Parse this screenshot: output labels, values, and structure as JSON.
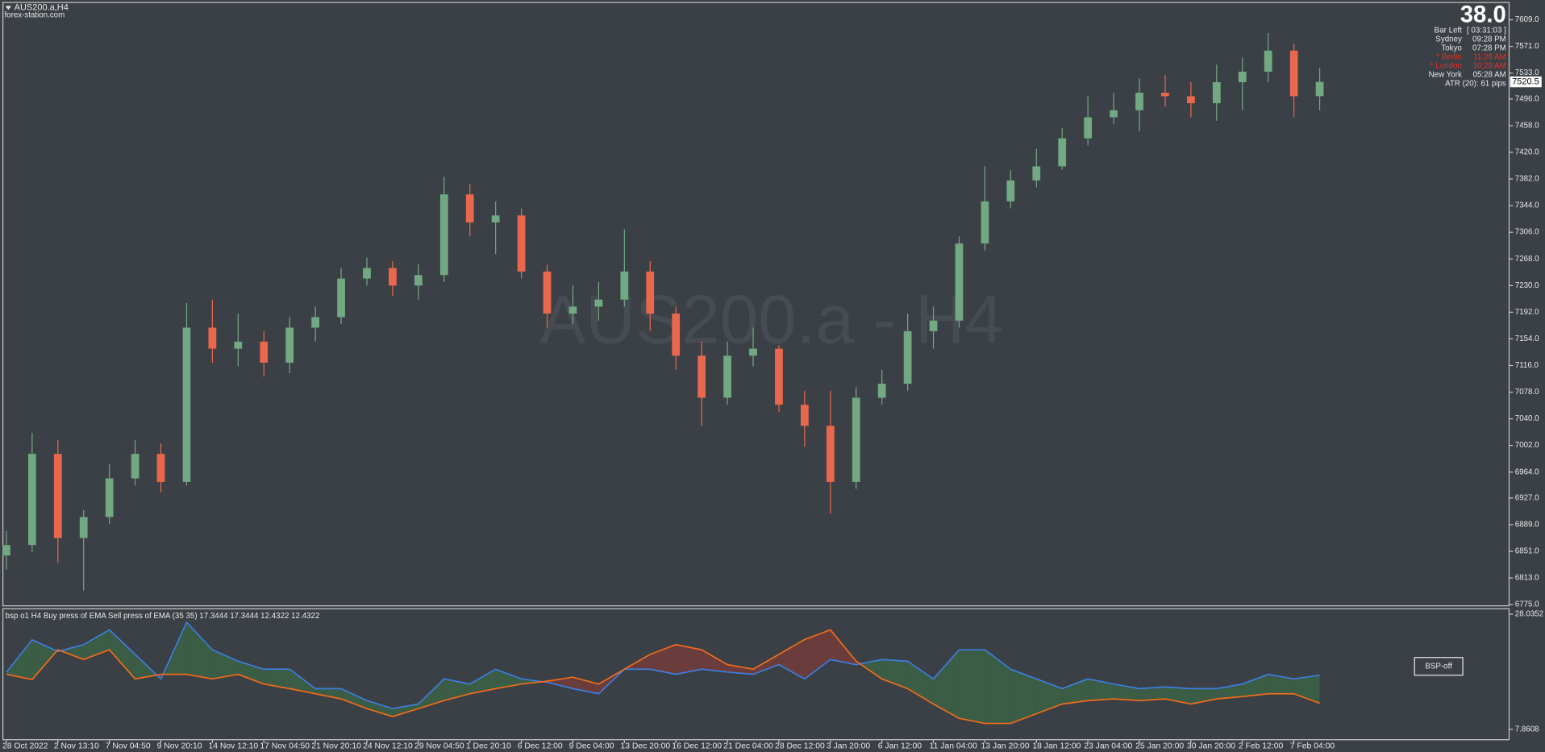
{
  "header": {
    "symbol": "AUS200.a,H4",
    "site": "forex-station.com",
    "watermark": "AUS200.a - H4",
    "button": "BSP-off"
  },
  "info": {
    "bar_count": "38.0",
    "rows": [
      [
        "Bar Left",
        "[ 03:31:03 ]"
      ],
      [
        "Sydney",
        "09:28 PM"
      ],
      [
        "Tokyo",
        "07:28 PM"
      ],
      [
        "* Berlin",
        "11:28 AM"
      ],
      [
        "* London",
        "10:28 AM"
      ],
      [
        "New York",
        "05:28 AM"
      ]
    ],
    "atr": "ATR (20): 61 pips"
  },
  "chart_data": [
    {
      "type": "candlestick",
      "up_color": "#72a882",
      "down_color": "#e9674d",
      "open": [
        6845,
        6860,
        6990,
        6870,
        6900,
        6955,
        6990,
        6950,
        7170,
        7140,
        7150,
        7120,
        7170,
        7185,
        7240,
        7255,
        7230,
        7245,
        7360,
        7320,
        7330,
        7250,
        7190,
        7200,
        7210,
        7250,
        7190,
        7130,
        7070,
        7130,
        7140,
        7060,
        7030,
        6950,
        7070,
        7090,
        7165,
        7180,
        7290,
        7350,
        7380,
        7400,
        7440,
        7470,
        7480,
        7505,
        7500,
        7490,
        7520,
        7535,
        7565,
        7500
      ],
      "high": [
        6880,
        7020,
        7010,
        6910,
        6975,
        7010,
        7005,
        7205,
        7210,
        7190,
        7165,
        7185,
        7200,
        7255,
        7270,
        7265,
        7260,
        7385,
        7375,
        7350,
        7340,
        7260,
        7230,
        7235,
        7310,
        7265,
        7200,
        7150,
        7150,
        7170,
        7145,
        7080,
        7080,
        7085,
        7110,
        7190,
        7200,
        7300,
        7400,
        7395,
        7425,
        7455,
        7500,
        7505,
        7525,
        7530,
        7520,
        7545,
        7555,
        7590,
        7575,
        7540
      ],
      "low": [
        6825,
        6850,
        6835,
        6795,
        6890,
        6945,
        6935,
        6945,
        7120,
        7115,
        7100,
        7105,
        7150,
        7175,
        7230,
        7215,
        7210,
        7235,
        7300,
        7275,
        7240,
        7170,
        7175,
        7180,
        7200,
        7165,
        7110,
        7030,
        7060,
        7115,
        7050,
        7000,
        6905,
        6940,
        7060,
        7080,
        7140,
        7170,
        7280,
        7340,
        7370,
        7395,
        7430,
        7460,
        7450,
        7485,
        7470,
        7465,
        7480,
        7520,
        7470,
        7480
      ],
      "close": [
        6860,
        6990,
        6870,
        6900,
        6955,
        6990,
        6950,
        7170,
        7140,
        7150,
        7120,
        7170,
        7185,
        7240,
        7255,
        7230,
        7245,
        7360,
        7320,
        7330,
        7250,
        7190,
        7200,
        7210,
        7250,
        7190,
        7130,
        7070,
        7130,
        7140,
        7060,
        7030,
        6950,
        7070,
        7090,
        7165,
        7180,
        7290,
        7350,
        7380,
        7400,
        7440,
        7470,
        7480,
        7505,
        7500,
        7490,
        7520,
        7535,
        7565,
        7500,
        7520.5
      ],
      "current_price": 7520.5,
      "ylim": [
        6774,
        7633
      ],
      "yticks": [
        {
          "value": 7609,
          "label": "7609.0"
        },
        {
          "value": 7571,
          "label": "7571.0"
        },
        {
          "value": 7533,
          "label": "7533.0"
        },
        {
          "value": 7496,
          "label": "7496.0"
        },
        {
          "value": 7458,
          "label": "7458.0"
        },
        {
          "value": 7420,
          "label": "7420.0"
        },
        {
          "value": 7382,
          "label": "7382.0"
        },
        {
          "value": 7344,
          "label": "7344.0"
        },
        {
          "value": 7306,
          "label": "7306.0"
        },
        {
          "value": 7268,
          "label": "7268.0"
        },
        {
          "value": 7230,
          "label": "7230.0"
        },
        {
          "value": 7192,
          "label": "7192.0"
        },
        {
          "value": 7154,
          "label": "7154.0"
        },
        {
          "value": 7116,
          "label": "7116.0"
        },
        {
          "value": 7078,
          "label": "7078.0"
        },
        {
          "value": 7040,
          "label": "7040.0"
        },
        {
          "value": 7002,
          "label": "7002.0"
        },
        {
          "value": 6964,
          "label": "6964.0"
        },
        {
          "value": 6927,
          "label": "6927.0"
        },
        {
          "value": 6889,
          "label": "6889.0"
        },
        {
          "value": 6851,
          "label": "6851.0"
        },
        {
          "value": 6813,
          "label": "6813.0"
        },
        {
          "value": 6775,
          "label": "6775.0"
        }
      ]
    },
    {
      "type": "line",
      "title": "bsp o1 H4 Buy press of EMA Sell press of EMA (35 35) 17.3444 17.3444 12.4322 12.4322",
      "fill": true,
      "fill_up_color": "#3b5c45",
      "fill_down_color": "#6a3d3c",
      "categories": [
        "28 Oct 2022",
        null,
        "2 Nov 13:10",
        null,
        "7 Nov 04:50",
        null,
        "9 Nov 20:10",
        null,
        "14 Nov 12:10",
        null,
        "17 Nov 04:50",
        null,
        "21 Nov 20:10",
        null,
        "24 Nov 12:10",
        null,
        "29 Nov 04:50",
        null,
        "1 Dec 20:10",
        null,
        "6 Dec 12:00",
        null,
        "9 Dec 04:00",
        null,
        "13 Dec 20:00",
        null,
        "16 Dec 12:00",
        null,
        "21 Dec 04:00",
        null,
        "28 Dec 12:00",
        null,
        "3 Jan 20:00",
        null,
        "6 Jan 12:00",
        null,
        "11 Jan 04:00",
        null,
        "13 Jan 20:00",
        null,
        "18 Jan 12:00",
        null,
        "23 Jan 04:00",
        null,
        "25 Jan 20:00",
        null,
        "30 Jan 20:00",
        null,
        "2 Feb 12:00",
        null,
        "7 Feb 04:00",
        null
      ],
      "series": [
        {
          "color": "#3d7de0",
          "values": [
            17.86,
            23.55,
            21.5,
            22.7,
            25.3,
            21.0,
            16.7,
            26.6,
            21.8,
            19.8,
            18.4,
            18.4,
            15.0,
            15.0,
            12.9,
            11.5,
            12.3,
            16.7,
            15.8,
            18.4,
            16.7,
            16.1,
            15.0,
            14.1,
            18.4,
            18.4,
            17.5,
            18.4,
            17.9,
            17.5,
            19.2,
            16.7,
            20.1,
            19.2,
            20.1,
            19.8,
            16.7,
            21.8,
            21.8,
            18.4,
            16.7,
            15.0,
            16.7,
            15.8,
            15.0,
            15.3,
            15.0,
            15.0,
            15.8,
            17.5,
            16.7,
            17.3444
          ]
        },
        {
          "color": "#f26b1d",
          "values": [
            17.5,
            16.6,
            21.8,
            20.1,
            21.8,
            16.7,
            17.5,
            17.5,
            16.7,
            17.5,
            15.8,
            15.0,
            14.1,
            13.2,
            11.5,
            10.1,
            11.5,
            12.9,
            14.1,
            15.0,
            15.8,
            16.3,
            17.0,
            15.8,
            18.4,
            21.0,
            22.7,
            21.8,
            19.2,
            18.4,
            21.0,
            23.6,
            25.3,
            19.8,
            16.7,
            15.0,
            12.3,
            9.8,
            8.9,
            8.9,
            10.6,
            12.3,
            12.9,
            13.2,
            12.9,
            13.2,
            12.3,
            13.2,
            13.6,
            14.1,
            14.1,
            12.4322
          ]
        }
      ],
      "ylim": [
        7.8608,
        28.0352
      ],
      "yticks": [
        7.8608,
        28.0352
      ]
    }
  ]
}
